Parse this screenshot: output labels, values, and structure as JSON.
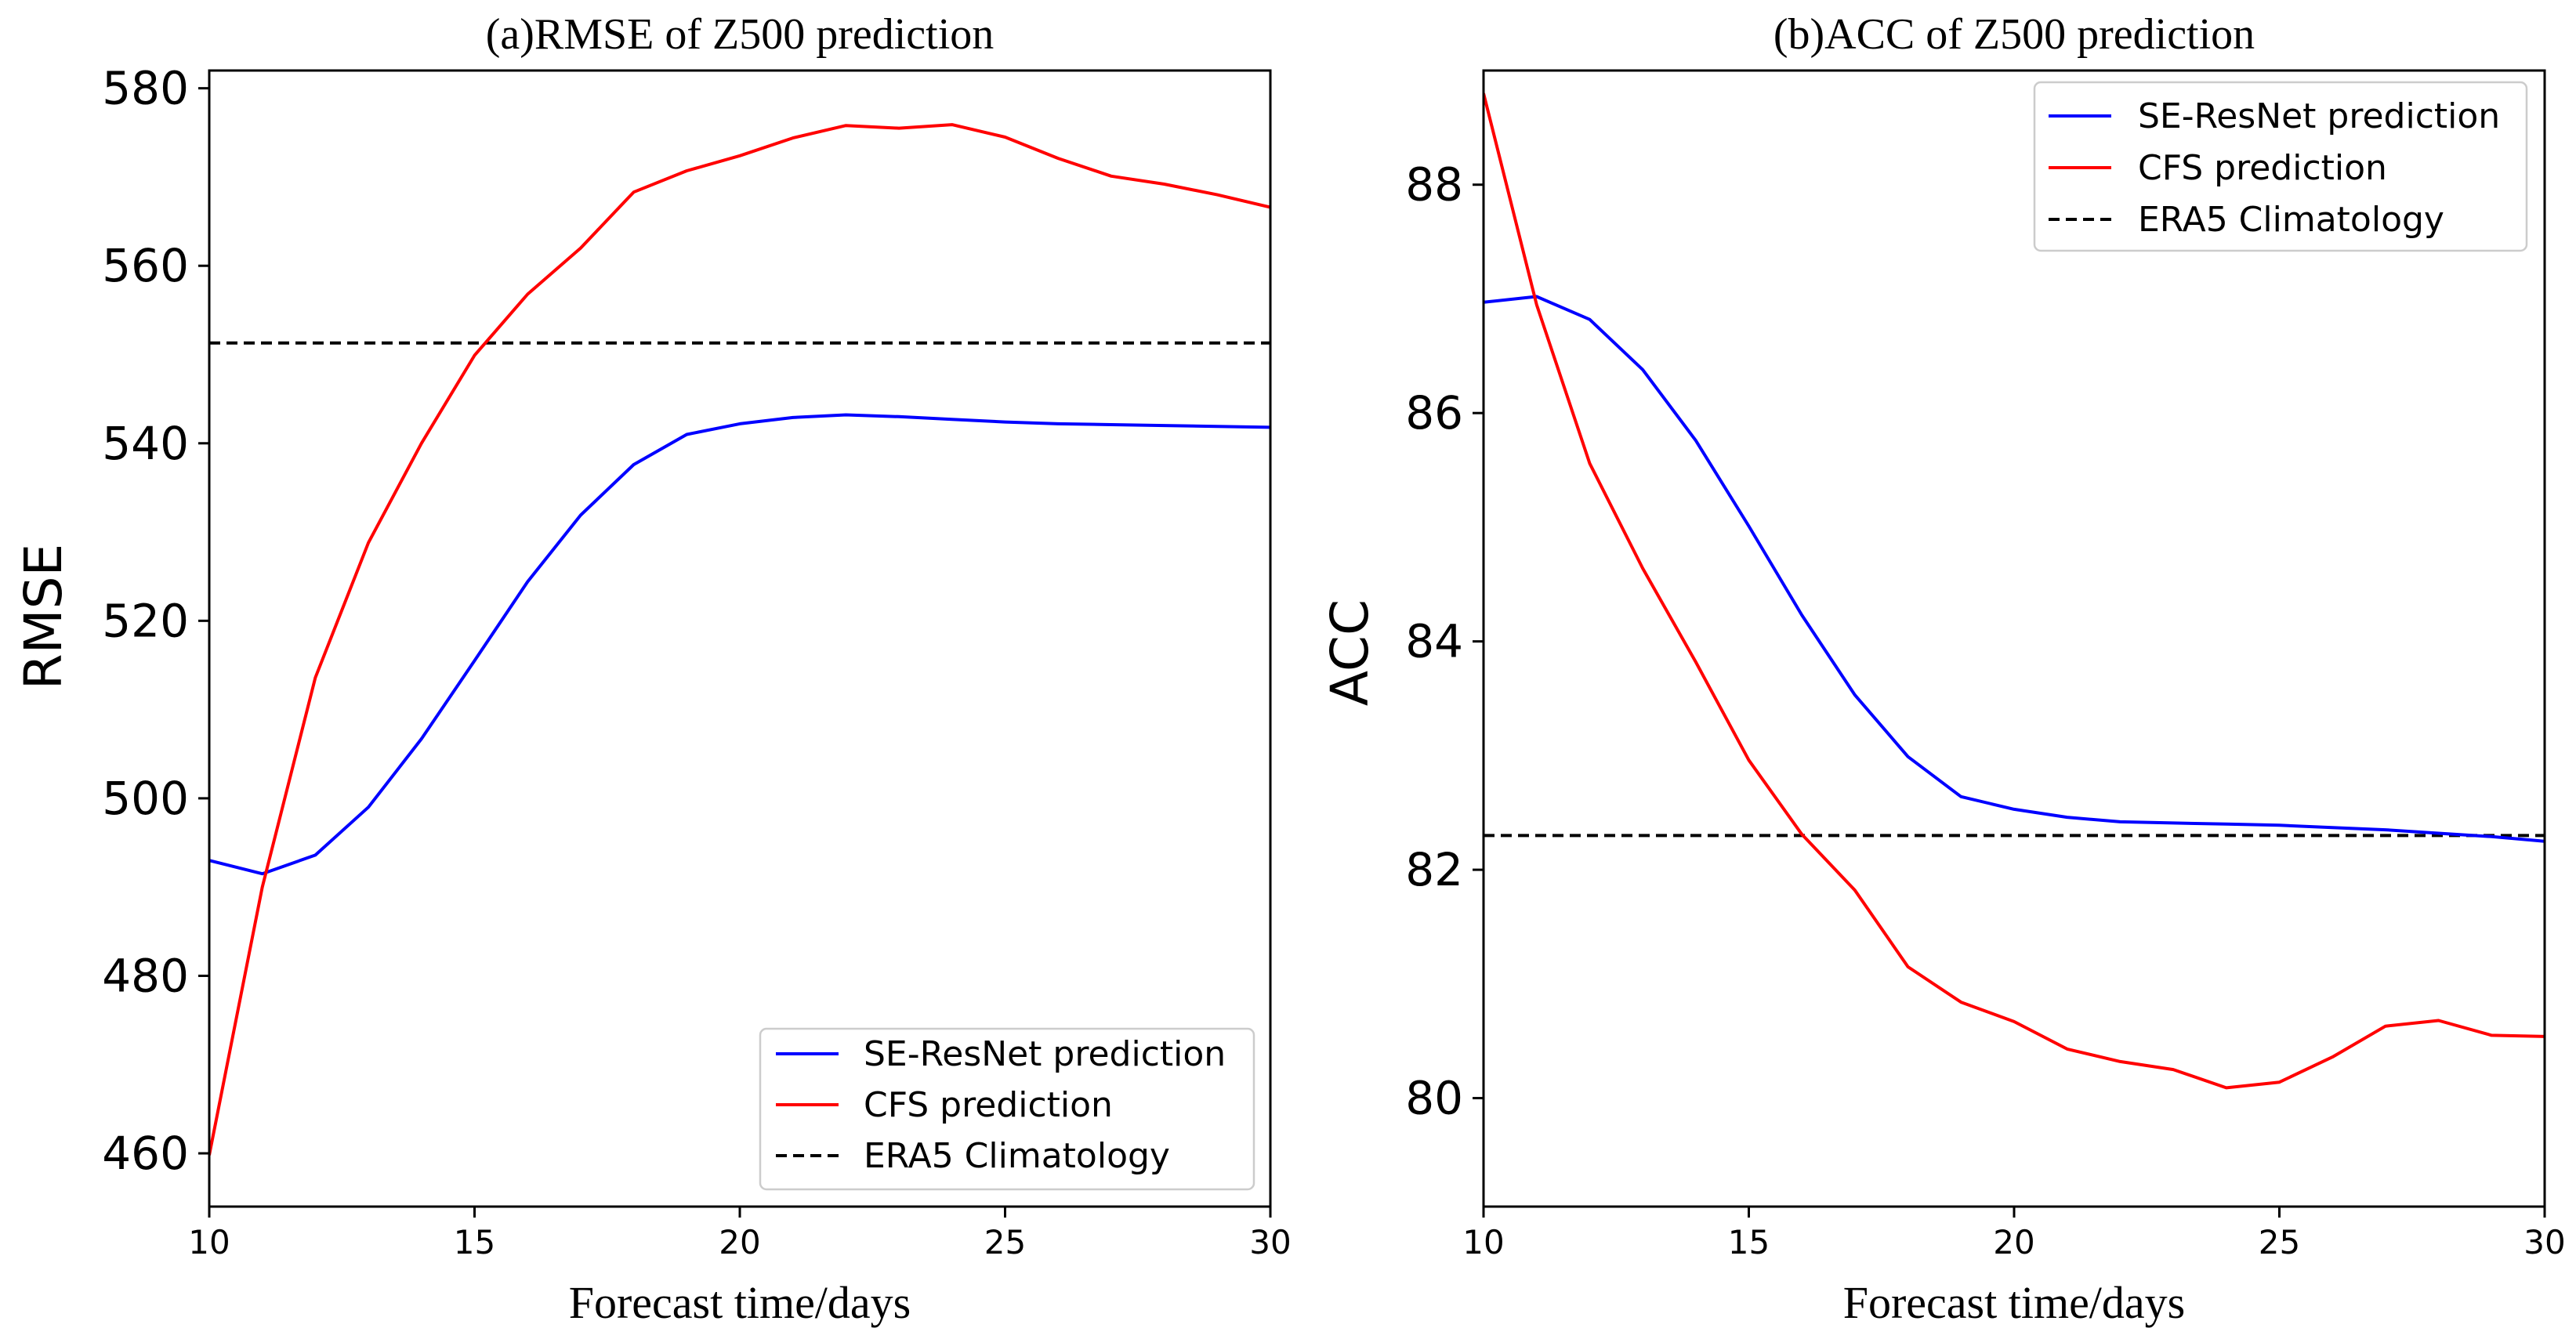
{
  "chart_data": [
    {
      "id": "rmse",
      "type": "line",
      "title": "(a)RMSE of Z500 prediction",
      "xlabel": "Forecast time/days",
      "ylabel": "RMSE",
      "xlim": [
        10,
        30
      ],
      "ylim": [
        454,
        582
      ],
      "xticks": [
        10,
        15,
        20,
        25,
        30
      ],
      "yticks": [
        460,
        480,
        500,
        520,
        540,
        560,
        580
      ],
      "legend_position": "lower-right",
      "x": [
        10,
        11,
        12,
        13,
        14,
        15,
        16,
        17,
        18,
        19,
        20,
        21,
        22,
        23,
        24,
        25,
        26,
        27,
        28,
        29,
        30
      ],
      "series": [
        {
          "name": "SE-ResNet prediction",
          "color": "#0000ff",
          "style": "solid",
          "values": [
            493.0,
            491.5,
            493.6,
            499.0,
            506.7,
            515.5,
            524.4,
            531.9,
            537.6,
            541.0,
            542.2,
            542.9,
            543.2,
            543.0,
            542.7,
            542.4,
            542.2,
            542.1,
            542.0,
            541.9,
            541.8
          ]
        },
        {
          "name": "CFS prediction",
          "color": "#ff0000",
          "style": "solid",
          "values": [
            459.8,
            490.0,
            513.6,
            528.8,
            540.0,
            549.9,
            556.8,
            562.0,
            568.3,
            570.7,
            572.4,
            574.4,
            575.8,
            575.5,
            575.9,
            574.5,
            572.1,
            570.1,
            569.2,
            568.0,
            566.6
          ]
        },
        {
          "name": "ERA5 Climatology",
          "color": "#000000",
          "style": "dashed",
          "values": [
            551.3,
            551.3,
            551.3,
            551.3,
            551.3,
            551.3,
            551.3,
            551.3,
            551.3,
            551.3,
            551.3,
            551.3,
            551.3,
            551.3,
            551.3,
            551.3,
            551.3,
            551.3,
            551.3,
            551.3,
            551.3
          ]
        }
      ]
    },
    {
      "id": "acc",
      "type": "line",
      "title": "(b)ACC of Z500 prediction",
      "xlabel": "Forecast time/days",
      "ylabel": "ACC",
      "xlim": [
        10,
        30
      ],
      "ylim": [
        79.05,
        89.0
      ],
      "xticks": [
        10,
        15,
        20,
        25,
        30
      ],
      "yticks": [
        80,
        82,
        84,
        86,
        88
      ],
      "legend_position": "top-right",
      "x": [
        10,
        11,
        12,
        13,
        14,
        15,
        16,
        17,
        18,
        19,
        20,
        21,
        22,
        23,
        24,
        25,
        26,
        27,
        28,
        29,
        30
      ],
      "series": [
        {
          "name": "SE-ResNet prediction",
          "color": "#0000ff",
          "style": "solid",
          "values": [
            86.97,
            87.02,
            86.82,
            86.38,
            85.76,
            85.01,
            84.23,
            83.53,
            82.99,
            82.64,
            82.53,
            82.46,
            82.42,
            82.41,
            82.4,
            82.39,
            82.37,
            82.35,
            82.32,
            82.29,
            82.25
          ]
        },
        {
          "name": "CFS prediction",
          "color": "#ff0000",
          "style": "solid",
          "values": [
            88.8,
            86.95,
            85.56,
            84.64,
            83.82,
            82.96,
            82.31,
            81.82,
            81.15,
            80.84,
            80.67,
            80.43,
            80.32,
            80.25,
            80.09,
            80.14,
            80.36,
            80.63,
            80.68,
            80.55,
            80.54
          ]
        },
        {
          "name": "ERA5 Climatology",
          "color": "#000000",
          "style": "dashed",
          "values": [
            82.3,
            82.3,
            82.3,
            82.3,
            82.3,
            82.3,
            82.3,
            82.3,
            82.3,
            82.3,
            82.3,
            82.3,
            82.3,
            82.3,
            82.3,
            82.3,
            82.3,
            82.3,
            82.3,
            82.3,
            82.3
          ]
        }
      ]
    }
  ]
}
